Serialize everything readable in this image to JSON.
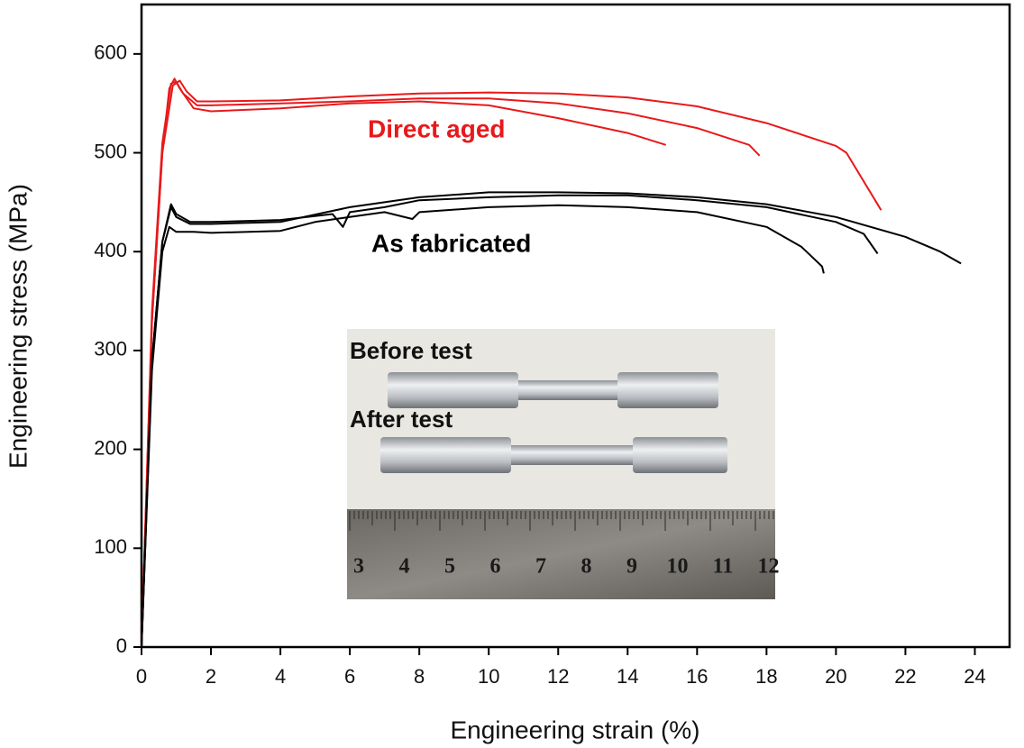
{
  "chart_data": {
    "type": "line",
    "xlabel": "Engineering strain (%)",
    "ylabel": "Engineering stress (MPa)",
    "xlim": [
      0,
      25
    ],
    "ylim": [
      0,
      650
    ],
    "xticks": [
      0,
      2,
      4,
      6,
      8,
      10,
      12,
      14,
      16,
      18,
      20,
      22,
      24
    ],
    "yticks": [
      0,
      100,
      200,
      300,
      400,
      500,
      600
    ],
    "annotations": [
      {
        "text": "Direct aged",
        "color": "#e8191b"
      },
      {
        "text": "As fabricated",
        "color": "#000000"
      }
    ],
    "series": [
      {
        "color": "#e8191b",
        "x": [
          0,
          0.3,
          0.6,
          0.8,
          0.95,
          1.1,
          1.5,
          2,
          4,
          6,
          8,
          10,
          12,
          14,
          15.1
        ],
        "values": [
          0,
          330,
          500,
          565,
          575,
          565,
          545,
          542,
          545,
          550,
          552,
          548,
          535,
          520,
          508
        ]
      },
      {
        "color": "#e8191b",
        "x": [
          0,
          0.3,
          0.6,
          0.85,
          1.0,
          1.2,
          1.6,
          2,
          4,
          6,
          8,
          10,
          12,
          14,
          16,
          17.5,
          17.8
        ],
        "values": [
          0,
          340,
          510,
          570,
          572,
          560,
          548,
          548,
          550,
          552,
          555,
          555,
          550,
          540,
          525,
          508,
          497
        ]
      },
      {
        "color": "#e8191b",
        "x": [
          0,
          0.3,
          0.6,
          0.9,
          1.1,
          1.3,
          1.6,
          2,
          4,
          6,
          8,
          10,
          12,
          14,
          16,
          18,
          20,
          20.3,
          21.3
        ],
        "values": [
          0,
          330,
          500,
          568,
          573,
          562,
          552,
          552,
          553,
          557,
          560,
          561,
          560,
          556,
          547,
          530,
          507,
          500,
          442
        ]
      },
      {
        "color": "#000000",
        "x": [
          0,
          0.3,
          0.6,
          0.8,
          1.0,
          1.5,
          2,
          4,
          5,
          6,
          7,
          7.8,
          8,
          10,
          12,
          14,
          16,
          18,
          19,
          19.6,
          19.65
        ],
        "values": [
          0,
          280,
          400,
          425,
          420,
          420,
          419,
          421,
          430,
          435,
          440,
          433,
          440,
          445,
          447,
          445,
          440,
          425,
          405,
          385,
          378
        ]
      },
      {
        "color": "#000000",
        "x": [
          0,
          0.3,
          0.6,
          0.85,
          1.0,
          1.4,
          2,
          4,
          5.5,
          5.8,
          6,
          7,
          8,
          10,
          12,
          14,
          16,
          18,
          20,
          20.8,
          21.2
        ],
        "values": [
          0,
          290,
          410,
          448,
          438,
          430,
          430,
          432,
          438,
          425,
          440,
          445,
          452,
          455,
          457,
          457,
          452,
          445,
          430,
          418,
          398
        ]
      },
      {
        "color": "#000000",
        "x": [
          0,
          0.3,
          0.6,
          0.85,
          1.0,
          1.4,
          2,
          4,
          6,
          8,
          10,
          12,
          14,
          16,
          18,
          20,
          22,
          23,
          23.6
        ],
        "values": [
          0,
          290,
          410,
          445,
          435,
          428,
          428,
          430,
          445,
          455,
          460,
          460,
          459,
          455,
          448,
          435,
          415,
          400,
          388
        ]
      }
    ],
    "inset": {
      "labels": [
        "Before test",
        "After test"
      ],
      "ruler_numbers": [
        3,
        4,
        5,
        6,
        7,
        8,
        9,
        10,
        11,
        12
      ]
    }
  }
}
